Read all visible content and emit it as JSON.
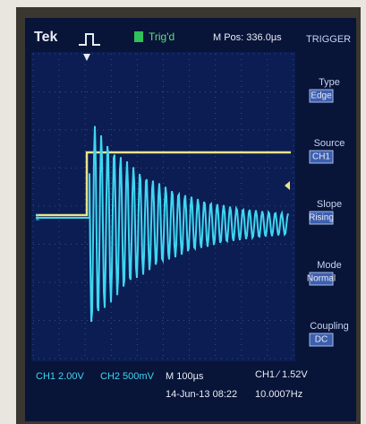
{
  "header": {
    "brand": "Tek",
    "status": "Trig'd",
    "position": "M Pos: 336.0µs",
    "menu_title": "TRIGGER"
  },
  "menu": [
    {
      "label": "Type",
      "value": "Edge"
    },
    {
      "label": "Source",
      "value": "CH1"
    },
    {
      "label": "Slope",
      "value": "Rising"
    },
    {
      "label": "Mode",
      "value": "Normal"
    },
    {
      "label": "Coupling",
      "value": "DC"
    }
  ],
  "footer": {
    "ch1": "CH1  2.00V",
    "ch2": "CH2  500mV",
    "timebase": "M 100µs",
    "trigger": "CH1  ∕  1.52V",
    "date": "14-Jun-13 08:22",
    "frequency": "10.0007Hz"
  },
  "marker": "1"
}
